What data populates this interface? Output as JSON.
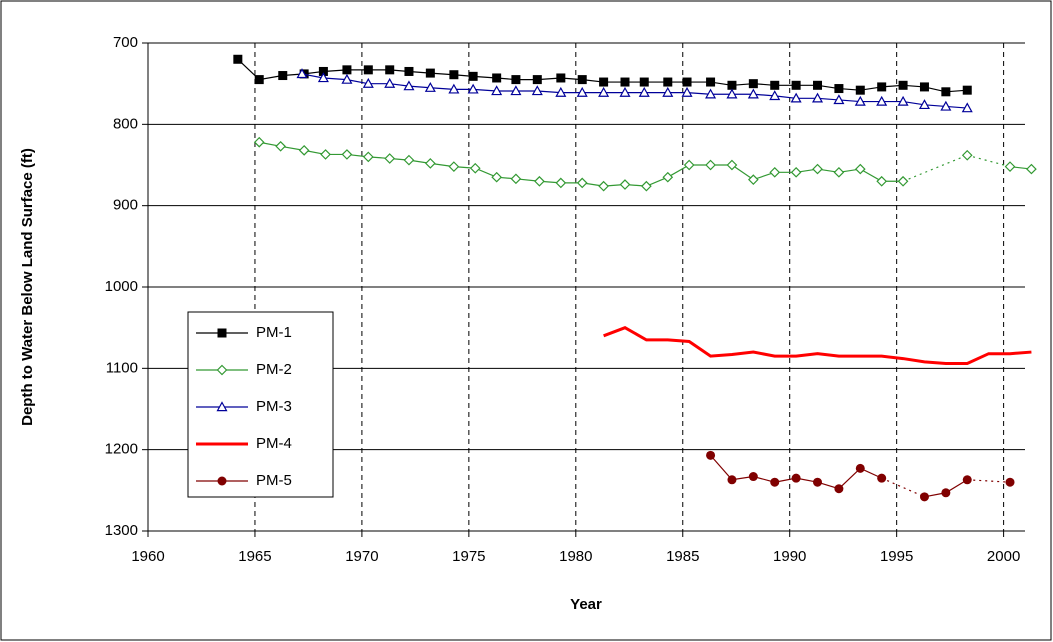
{
  "chart_data": {
    "type": "line",
    "xlabel": "Year",
    "ylabel": "Depth to Water Below Land Surface (ft)",
    "xlim": [
      1960,
      2001
    ],
    "xticks": [
      1960,
      1965,
      1970,
      1975,
      1980,
      1985,
      1990,
      1995,
      2000
    ],
    "ylim": [
      700,
      1300
    ],
    "yticks": [
      700,
      800,
      900,
      1000,
      1100,
      1200,
      1300
    ],
    "y_inverted": true,
    "grid": true,
    "legend": "left",
    "series": [
      {
        "name": "PM-1",
        "color": "#000000",
        "marker": "square",
        "x": [
          1964.2,
          1965.2,
          1966.3,
          1967.3,
          1968.2,
          1969.3,
          1970.3,
          1971.3,
          1972.2,
          1973.2,
          1974.3,
          1975.2,
          1976.3,
          1977.2,
          1978.2,
          1979.3,
          1980.3,
          1981.3,
          1982.3,
          1983.2,
          1984.3,
          1985.2,
          1986.3,
          1987.3,
          1988.3,
          1989.3,
          1990.3,
          1991.3,
          1992.3,
          1993.3,
          1994.3,
          1995.3,
          1996.3,
          1997.3,
          1998.3
        ],
        "values": [
          720,
          745,
          740,
          738,
          735,
          733,
          733,
          733,
          735,
          737,
          739,
          741,
          743,
          745,
          745,
          743,
          745,
          748,
          748,
          748,
          748,
          748,
          748,
          752,
          750,
          752,
          752,
          752,
          756,
          758,
          754,
          752,
          754,
          760,
          758
        ]
      },
      {
        "name": "PM-2",
        "color": "#339933",
        "marker": "diamond",
        "x": [
          1965.2,
          1966.2,
          1967.3,
          1968.3,
          1969.3,
          1970.3,
          1971.3,
          1972.2,
          1973.2,
          1974.3,
          1975.3,
          1976.3,
          1977.2,
          1978.3,
          1979.3,
          1980.3,
          1981.3,
          1982.3,
          1983.3,
          1984.3,
          1985.3,
          1986.3,
          1987.3,
          1988.3,
          1989.3,
          1990.3,
          1991.3,
          1992.3,
          1993.3,
          1994.3,
          1995.3,
          1998.3,
          2000.3,
          2001.3
        ],
        "values": [
          822,
          827,
          832,
          837,
          837,
          840,
          842,
          844,
          848,
          852,
          854,
          865,
          867,
          870,
          872,
          872,
          876,
          874,
          876,
          865,
          850,
          850,
          850,
          868,
          859,
          859,
          855,
          859,
          855,
          870,
          870,
          838,
          852,
          855
        ]
      },
      {
        "name": "PM-3",
        "color": "#000099",
        "marker": "triangle",
        "x": [
          1967.2,
          1968.2,
          1969.3,
          1970.3,
          1971.3,
          1972.2,
          1973.2,
          1974.3,
          1975.2,
          1976.3,
          1977.2,
          1978.2,
          1979.3,
          1980.3,
          1981.3,
          1982.3,
          1983.2,
          1984.3,
          1985.2,
          1986.3,
          1987.3,
          1988.3,
          1989.3,
          1990.3,
          1991.3,
          1992.3,
          1993.3,
          1994.3,
          1995.3,
          1996.3,
          1997.3,
          1998.3
        ],
        "values": [
          738,
          743,
          745,
          750,
          750,
          753,
          755,
          757,
          757,
          759,
          759,
          759,
          761,
          761,
          761,
          761,
          761,
          761,
          761,
          763,
          763,
          763,
          765,
          768,
          768,
          770,
          772,
          772,
          772,
          776,
          778,
          780
        ]
      },
      {
        "name": "PM-4",
        "color": "#ff0000",
        "marker": "none",
        "x": [
          1981.3,
          1982.3,
          1983.3,
          1984.3,
          1985.3,
          1986.3,
          1987.3,
          1988.3,
          1989.3,
          1990.3,
          1991.3,
          1992.3,
          1993.3,
          1994.3,
          1995.3,
          1996.3,
          1997.3,
          1998.3,
          1999.3,
          2000.3,
          2001.3
        ],
        "values": [
          1060,
          1050,
          1065,
          1065,
          1067,
          1085,
          1083,
          1080,
          1085,
          1085,
          1082,
          1085,
          1085,
          1085,
          1088,
          1092,
          1094,
          1094,
          1082,
          1082,
          1080
        ]
      },
      {
        "name": "PM-5",
        "color": "#800000",
        "marker": "circle",
        "x": [
          1986.3,
          1987.3,
          1988.3,
          1989.3,
          1990.3,
          1991.3,
          1992.3,
          1993.3,
          1994.3,
          1996.3,
          1997.3,
          1998.3,
          2000.3
        ],
        "values": [
          1207,
          1237,
          1233,
          1240,
          1235,
          1240,
          1248,
          1223,
          1235,
          1258,
          1253,
          1237,
          1240
        ]
      }
    ]
  }
}
